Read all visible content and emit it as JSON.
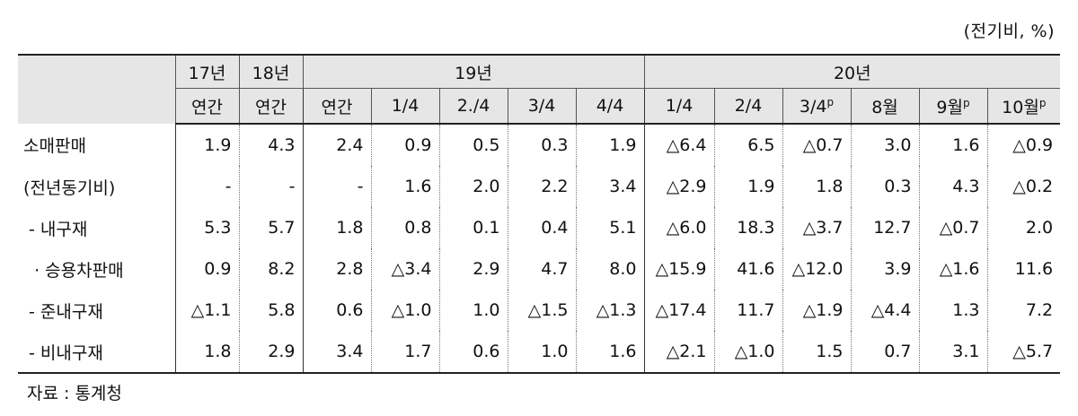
{
  "unit_label": "(전기비, %)",
  "header": {
    "years": [
      "17년",
      "18년",
      "19년",
      "20년"
    ],
    "periods": [
      {
        "label": "연간",
        "sup": ""
      },
      {
        "label": "연간",
        "sup": ""
      },
      {
        "label": "연간",
        "sup": ""
      },
      {
        "label": "1/4",
        "sup": ""
      },
      {
        "label": "2./4",
        "sup": ""
      },
      {
        "label": "3/4",
        "sup": ""
      },
      {
        "label": "4/4",
        "sup": ""
      },
      {
        "label": "1/4",
        "sup": ""
      },
      {
        "label": "2/4",
        "sup": ""
      },
      {
        "label": "3/4",
        "sup": "p"
      },
      {
        "label": "8월",
        "sup": ""
      },
      {
        "label": "9월",
        "sup": "p"
      },
      {
        "label": "10월",
        "sup": "p"
      }
    ]
  },
  "rows": [
    {
      "label": "소매판매",
      "values": [
        "1.9",
        "4.3",
        "2.4",
        "0.9",
        "0.5",
        "0.3",
        "1.9",
        "△6.4",
        "6.5",
        "△0.7",
        "3.0",
        "1.6",
        "△0.9"
      ]
    },
    {
      "label": "(전년동기비)",
      "values": [
        "-",
        "-",
        "-",
        "1.6",
        "2.0",
        "2.2",
        "3.4",
        "△2.9",
        "1.9",
        "1.8",
        "0.3",
        "4.3",
        "△0.2"
      ]
    },
    {
      "label": " - 내구재",
      "values": [
        "5.3",
        "5.7",
        "1.8",
        "0.8",
        "0.1",
        "0.4",
        "5.1",
        "△6.0",
        "18.3",
        "△3.7",
        "12.7",
        "△0.7",
        "2.0"
      ]
    },
    {
      "label": "  · 승용차판매",
      "values": [
        "0.9",
        "8.2",
        "2.8",
        "△3.4",
        "2.9",
        "4.7",
        "8.0",
        "△15.9",
        "41.6",
        "△12.0",
        "3.9",
        "△1.6",
        "11.6"
      ]
    },
    {
      "label": " - 준내구재",
      "values": [
        "△1.1",
        "5.8",
        "0.6",
        "△1.0",
        "1.0",
        "△1.5",
        "△1.3",
        "△17.4",
        "11.7",
        "△1.9",
        "△4.4",
        "1.3",
        "7.2"
      ]
    },
    {
      "label": " - 비내구재",
      "values": [
        "1.8",
        "2.9",
        "3.4",
        "1.7",
        "0.6",
        "1.0",
        "1.6",
        "△2.1",
        "△1.0",
        "1.5",
        "0.7",
        "3.1",
        "△5.7"
      ]
    }
  ],
  "source": "자료 : 통계청"
}
